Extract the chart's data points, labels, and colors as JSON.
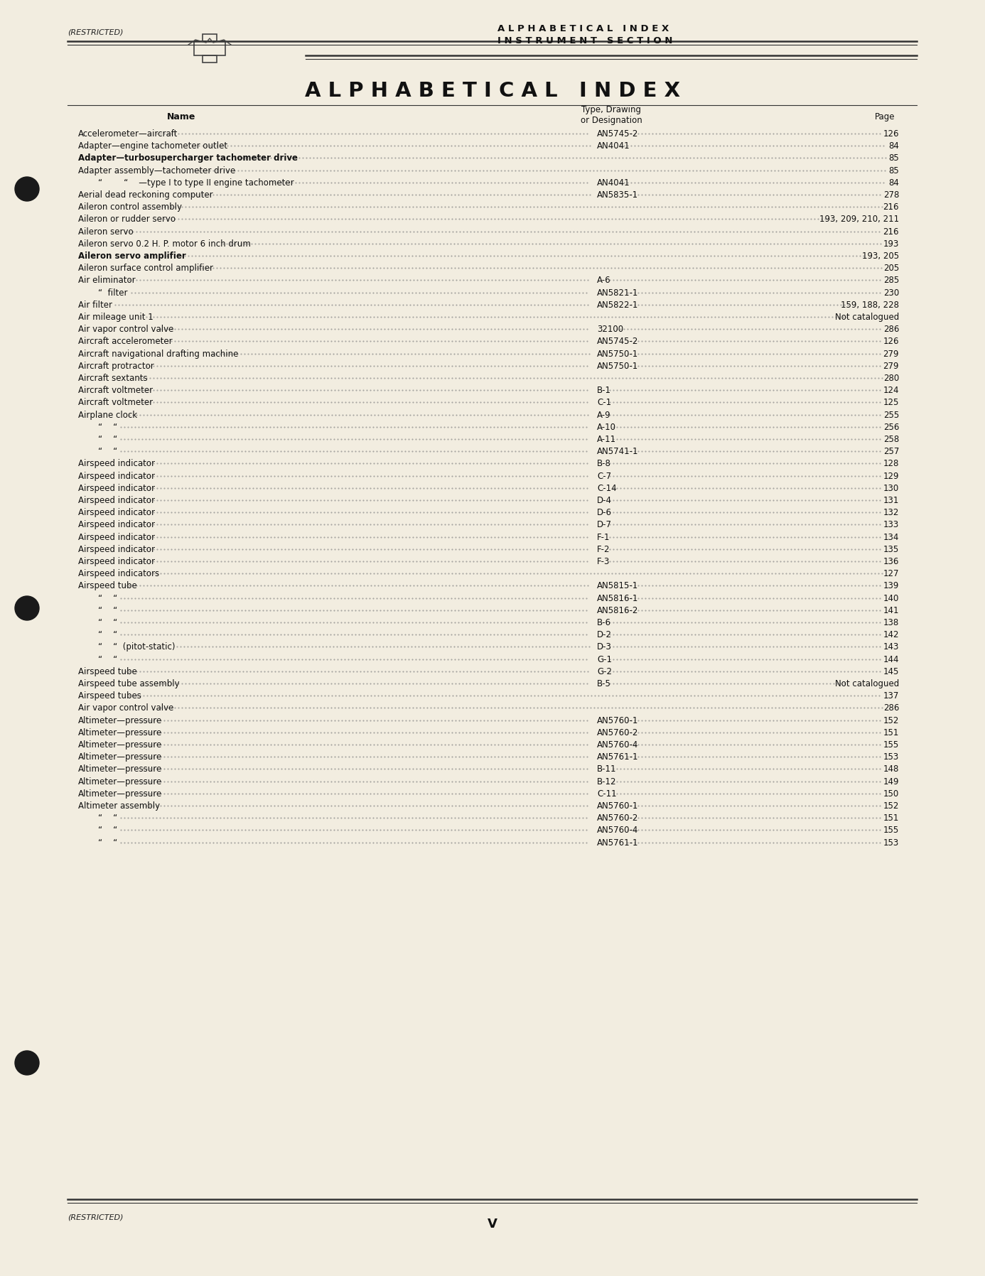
{
  "bg_color": "#f2ede0",
  "header_restricted": "(RESTRICTED)",
  "header_title_line1": "A L P H A B E T I C A L   I N D E X",
  "header_title_line2": "I N S T R U M E N T   S E C T I O N",
  "main_title": "A L P H A B E T I C A L   I N D E X",
  "col_header_name": "Name",
  "col_header_type": "Type, Drawing",
  "col_header_desig": "or Designation",
  "col_header_page": "Page",
  "footer_restricted": "(RESTRICTED)",
  "footer_page": "V",
  "entries": [
    {
      "name": "Accelerometer—aircraft",
      "bold": false,
      "indent": 0,
      "type_desig": "AN5745-2",
      "page": "126"
    },
    {
      "name": "Adapter—engine tachometer outlet",
      "bold": false,
      "indent": 0,
      "type_desig": "AN4041",
      "page": "84"
    },
    {
      "name": "Adapter—turbosupercharger tachometer drive",
      "bold": true,
      "indent": 0,
      "type_desig": "",
      "page": "85"
    },
    {
      "name": "Adapter assembly—tachometer drive",
      "bold": false,
      "indent": 0,
      "type_desig": "",
      "page": "85"
    },
    {
      "name": "“        “    —type I to type II engine tachometer",
      "bold": false,
      "indent": 1,
      "type_desig": "AN4041",
      "page": "84"
    },
    {
      "name": "Aerial dead reckoning computer",
      "bold": false,
      "indent": 0,
      "type_desig": "AN5835-1",
      "page": "278"
    },
    {
      "name": "Aileron control assembly",
      "bold": false,
      "indent": 0,
      "type_desig": "",
      "page": "216"
    },
    {
      "name": "Aileron or rudder servo",
      "bold": false,
      "indent": 0,
      "type_desig": "",
      "page": "193, 209, 210, 211"
    },
    {
      "name": "Aileron servo",
      "bold": false,
      "indent": 0,
      "type_desig": "",
      "page": "216"
    },
    {
      "name": "Aileron servo 0.2 H. P. motor 6 inch drum",
      "bold": false,
      "indent": 0,
      "type_desig": "",
      "page": "193"
    },
    {
      "name": "Aileron servo amplifier",
      "bold": true,
      "indent": 0,
      "type_desig": "",
      "page": "193, 205"
    },
    {
      "name": "Aileron surface control amplifier",
      "bold": false,
      "indent": 0,
      "type_desig": "",
      "page": "205"
    },
    {
      "name": "Air eliminator",
      "bold": false,
      "indent": 0,
      "type_desig": "A-6",
      "page": "285"
    },
    {
      "name": "“  filter",
      "bold": false,
      "indent": 1,
      "type_desig": "AN5821-1",
      "page": "230"
    },
    {
      "name": "Air filter",
      "bold": false,
      "indent": 0,
      "type_desig": "AN5822-1",
      "page": "159, 188, 228"
    },
    {
      "name": "Air mileage unit 1",
      "bold": false,
      "indent": 0,
      "type_desig": "",
      "page": "Not catalogued"
    },
    {
      "name": "Air vapor control valve",
      "bold": false,
      "indent": 0,
      "type_desig": "32100",
      "page": "286"
    },
    {
      "name": "Aircraft accelerometer",
      "bold": false,
      "indent": 0,
      "type_desig": "AN5745-2",
      "page": "126"
    },
    {
      "name": "Aircraft navigational drafting machine",
      "bold": false,
      "indent": 0,
      "type_desig": "AN5750-1",
      "page": "279"
    },
    {
      "name": "Aircraft protractor",
      "bold": false,
      "indent": 0,
      "type_desig": "AN5750-1",
      "page": "279"
    },
    {
      "name": "Aircraft sextants",
      "bold": false,
      "indent": 0,
      "type_desig": "",
      "page": "280"
    },
    {
      "name": "Aircraft voltmeter",
      "bold": false,
      "indent": 0,
      "type_desig": "B-1",
      "page": "124"
    },
    {
      "name": "Aircraft voltmeter",
      "bold": false,
      "indent": 0,
      "type_desig": "C-1",
      "page": "125"
    },
    {
      "name": "Airplane clock",
      "bold": false,
      "indent": 0,
      "type_desig": "A-9",
      "page": "255"
    },
    {
      "name": "“    “",
      "bold": false,
      "indent": 1,
      "type_desig": "A-10",
      "page": "256"
    },
    {
      "name": "“    “",
      "bold": false,
      "indent": 1,
      "type_desig": "A-11",
      "page": "258"
    },
    {
      "name": "“    “",
      "bold": false,
      "indent": 1,
      "type_desig": "AN5741-1",
      "page": "257"
    },
    {
      "name": "Airspeed indicator",
      "bold": false,
      "indent": 0,
      "type_desig": "B-8",
      "page": "128"
    },
    {
      "name": "Airspeed indicator",
      "bold": false,
      "indent": 0,
      "type_desig": "C-7",
      "page": "129"
    },
    {
      "name": "Airspeed indicator",
      "bold": false,
      "indent": 0,
      "type_desig": "C-14",
      "page": "130"
    },
    {
      "name": "Airspeed indicator",
      "bold": false,
      "indent": 0,
      "type_desig": "D-4",
      "page": "131"
    },
    {
      "name": "Airspeed indicator",
      "bold": false,
      "indent": 0,
      "type_desig": "D-6",
      "page": "132"
    },
    {
      "name": "Airspeed indicator",
      "bold": false,
      "indent": 0,
      "type_desig": "D-7",
      "page": "133"
    },
    {
      "name": "Airspeed indicator",
      "bold": false,
      "indent": 0,
      "type_desig": "F-1",
      "page": "134"
    },
    {
      "name": "Airspeed indicator",
      "bold": false,
      "indent": 0,
      "type_desig": "F-2",
      "page": "135"
    },
    {
      "name": "Airspeed indicator",
      "bold": false,
      "indent": 0,
      "type_desig": "F-3",
      "page": "136"
    },
    {
      "name": "Airspeed indicators",
      "bold": false,
      "indent": 0,
      "type_desig": "",
      "page": "127"
    },
    {
      "name": "Airspeed tube",
      "bold": false,
      "indent": 0,
      "type_desig": "AN5815-1",
      "page": "139"
    },
    {
      "name": "“    “",
      "bold": false,
      "indent": 1,
      "type_desig": "AN5816-1",
      "page": "140"
    },
    {
      "name": "“    “",
      "bold": false,
      "indent": 1,
      "type_desig": "AN5816-2",
      "page": "141"
    },
    {
      "name": "“    “",
      "bold": false,
      "indent": 1,
      "type_desig": "B-6",
      "page": "138"
    },
    {
      "name": "“    “",
      "bold": false,
      "indent": 1,
      "type_desig": "D-2",
      "page": "142"
    },
    {
      "name": "“    “  (pitot-static)",
      "bold": false,
      "indent": 1,
      "type_desig": "D-3",
      "page": "143"
    },
    {
      "name": "“    “",
      "bold": false,
      "indent": 1,
      "type_desig": "G-1",
      "page": "144"
    },
    {
      "name": "Airspeed tube",
      "bold": false,
      "indent": 0,
      "type_desig": "G-2",
      "page": "145"
    },
    {
      "name": "Airspeed tube assembly",
      "bold": false,
      "indent": 0,
      "type_desig": "B-5",
      "page": "Not catalogued"
    },
    {
      "name": "Airspeed tubes",
      "bold": false,
      "indent": 0,
      "type_desig": "",
      "page": "137"
    },
    {
      "name": "Air vapor control valve",
      "bold": false,
      "indent": 0,
      "type_desig": "",
      "page": "286"
    },
    {
      "name": "Altimeter—pressure",
      "bold": false,
      "indent": 0,
      "type_desig": "AN5760-1",
      "page": "152"
    },
    {
      "name": "Altimeter—pressure",
      "bold": false,
      "indent": 0,
      "type_desig": "AN5760-2",
      "page": "151"
    },
    {
      "name": "Altimeter—pressure",
      "bold": false,
      "indent": 0,
      "type_desig": "AN5760-4",
      "page": "155"
    },
    {
      "name": "Altimeter—pressure",
      "bold": false,
      "indent": 0,
      "type_desig": "AN5761-1",
      "page": "153"
    },
    {
      "name": "Altimeter—pressure",
      "bold": false,
      "indent": 0,
      "type_desig": "B-11",
      "page": "148"
    },
    {
      "name": "Altimeter—pressure",
      "bold": false,
      "indent": 0,
      "type_desig": "B-12",
      "page": "149"
    },
    {
      "name": "Altimeter—pressure",
      "bold": false,
      "indent": 0,
      "type_desig": "C-11",
      "page": "150"
    },
    {
      "name": "Altimeter assembly",
      "bold": false,
      "indent": 0,
      "type_desig": "AN5760-1",
      "page": "152"
    },
    {
      "name": "“    “",
      "bold": false,
      "indent": 1,
      "type_desig": "AN5760-2",
      "page": "151"
    },
    {
      "name": "“    “",
      "bold": false,
      "indent": 1,
      "type_desig": "AN5760-4",
      "page": "155"
    },
    {
      "name": "“    “",
      "bold": false,
      "indent": 1,
      "type_desig": "AN5761-1",
      "page": "153"
    }
  ]
}
